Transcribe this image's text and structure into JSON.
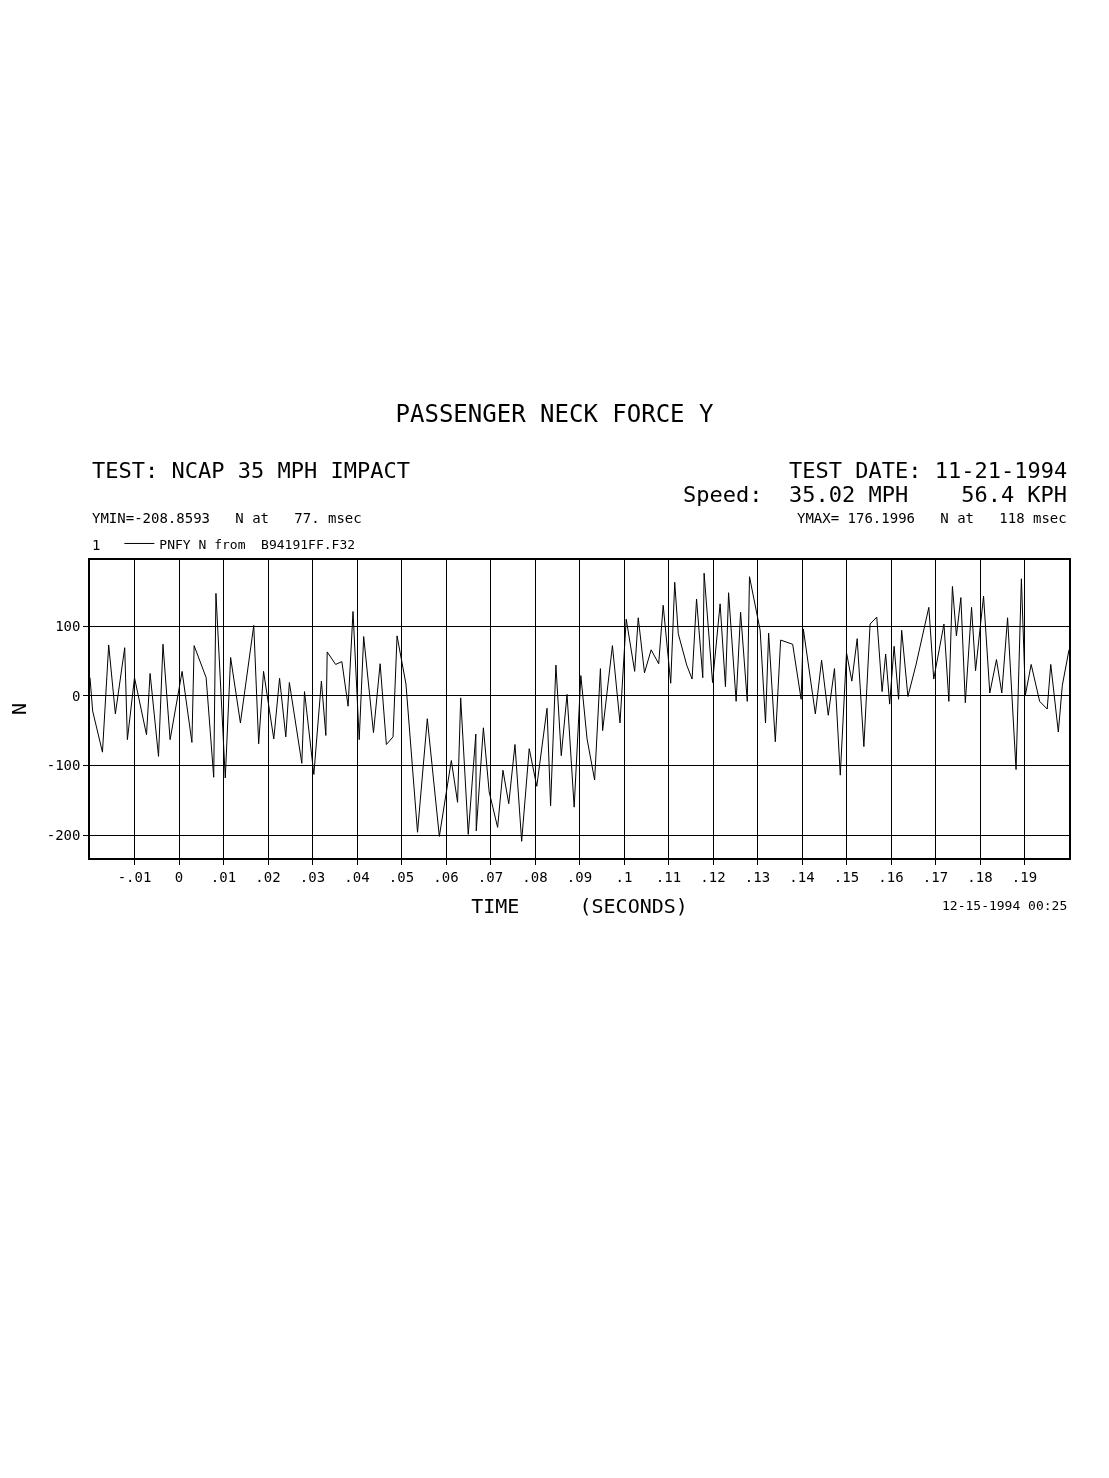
{
  "chart_data": {
    "type": "line",
    "title": "PASSENGER NECK FORCE Y",
    "xlabel": "TIME     (SECONDS)",
    "ylabel": "N",
    "annotations": [
      "TEST: NCAP 35 MPH IMPACT",
      "TEST DATE: 11-21-1994",
      "Speed:  35.02 MPH    56.4 KPH",
      "YMIN=-208.8593   N at   77. msec",
      "YMAX= 176.1996   N at   118 msec",
      "1",
      "12-15-1994 00:25"
    ],
    "x": [
      -0.02,
      -0.0194,
      -0.0172,
      -0.0158,
      -0.0143,
      -0.0122,
      -0.0116,
      -0.01,
      -0.0073,
      -0.0065,
      -0.0046,
      -0.0036,
      -0.002,
      0.0007,
      0.0029,
      0.0034,
      0.0061,
      0.0078,
      0.0083,
      0.0104,
      0.0116,
      0.0138,
      0.0168,
      0.0179,
      0.019,
      0.0213,
      0.0226,
      0.024,
      0.0248,
      0.0276,
      0.0282,
      0.0303,
      0.032,
      0.033,
      0.0333,
      0.0352,
      0.0366,
      0.038,
      0.0391,
      0.0405,
      0.0415,
      0.0437,
      0.0452,
      0.0466,
      0.0481,
      0.049,
      0.051,
      0.0536,
      0.0558,
      0.0585,
      0.0612,
      0.0626,
      0.0633,
      0.065,
      0.0667,
      0.0668,
      0.0684,
      0.0697,
      0.0716,
      0.0728,
      0.0741,
      0.0755,
      0.077,
      0.0787,
      0.0804,
      0.0827,
      0.0835,
      0.0847,
      0.0859,
      0.0872,
      0.0888,
      0.0903,
      0.0917,
      0.0934,
      0.0947,
      0.0952,
      0.0974,
      0.0991,
      0.1005,
      0.1024,
      0.1032,
      0.1046,
      0.1061,
      0.1078,
      0.1088,
      0.1105,
      0.1114,
      0.1122,
      0.1141,
      0.1153,
      0.1163,
      0.1177,
      0.118,
      0.1199,
      0.1216,
      0.1228,
      0.1235,
      0.1252,
      0.1262,
      0.1277,
      0.1282,
      0.1306,
      0.1318,
      0.1325,
      0.134,
      0.1352,
      0.1379,
      0.1398,
      0.1403,
      0.143,
      0.1444,
      0.1459,
      0.1473,
      0.1486,
      0.15,
      0.1512,
      0.1524,
      0.1539,
      0.1553,
      0.1568,
      0.158,
      0.1588,
      0.1597,
      0.1607,
      0.1617,
      0.1624,
      0.1638,
      0.1656,
      0.1685,
      0.1696,
      0.1719,
      0.173,
      0.1738,
      0.1747,
      0.1757,
      0.1767,
      0.1781,
      0.179,
      0.1808,
      0.1822,
      0.1837,
      0.1849,
      0.1862,
      0.1881,
      0.1893,
      0.1902,
      0.1915,
      0.1934,
      0.1951,
      0.1959,
      0.1976,
      0.1985,
      0.2
    ],
    "series": [
      {
        "name": "PNFY N from  B94191FF.F32",
        "color": "#000000",
        "values": [
          26,
          -22,
          -81,
          73,
          -26,
          69,
          -63,
          26,
          -56,
          32,
          -87,
          74,
          -63,
          35,
          -67,
          72,
          26,
          -117,
          147,
          -118,
          55,
          -39,
          101,
          -69,
          35,
          -62,
          25,
          -59,
          19,
          -97,
          6,
          -113,
          21,
          -57,
          63,
          45,
          49,
          -15,
          121,
          -63,
          85,
          -53,
          46,
          -70,
          -59,
          86,
          17,
          -196,
          -33,
          -202,
          -93,
          -153,
          -3,
          -199,
          -55,
          -194,
          -46,
          -138,
          -189,
          -107,
          -155,
          -70,
          -209,
          -76,
          -130,
          -18,
          -158,
          44,
          -86,
          2,
          -160,
          29,
          -62,
          -121,
          39,
          -50,
          72,
          -39,
          110,
          35,
          112,
          33,
          66,
          46,
          130,
          18,
          163,
          89,
          44,
          24,
          139,
          26,
          176,
          19,
          132,
          13,
          148,
          -8,
          120,
          -8,
          171,
          94,
          -39,
          90,
          -66,
          80,
          74,
          -5,
          96,
          -26,
          51,
          -28,
          39,
          -114,
          62,
          21,
          82,
          -73,
          103,
          113,
          6,
          60,
          -12,
          71,
          -5,
          94,
          -1,
          44,
          127,
          24,
          103,
          -8,
          157,
          86,
          141,
          -10,
          127,
          36,
          143,
          4,
          52,
          4,
          112,
          -106,
          168,
          1,
          45,
          -8,
          -19,
          45,
          -52,
          15,
          66
        ]
      }
    ],
    "xlim": [
      -0.02,
      0.2
    ],
    "xticks": [
      {
        "value": -0.01,
        "label": "-.01"
      },
      0,
      {
        "value": 0.01,
        "label": ".01"
      },
      {
        "value": 0.02,
        "label": ".02"
      },
      {
        "value": 0.03,
        "label": ".03"
      },
      {
        "value": 0.04,
        "label": ".04"
      },
      {
        "value": 0.05,
        "label": ".05"
      },
      {
        "value": 0.06,
        "label": ".06"
      },
      {
        "value": 0.07,
        "label": ".07"
      },
      {
        "value": 0.08,
        "label": ".08"
      },
      {
        "value": 0.09,
        "label": ".09"
      },
      {
        "value": 0.1,
        "label": ".1"
      },
      {
        "value": 0.11,
        "label": ".11"
      },
      {
        "value": 0.12,
        "label": ".12"
      },
      {
        "value": 0.13,
        "label": ".13"
      },
      {
        "value": 0.14,
        "label": ".14"
      },
      {
        "value": 0.15,
        "label": ".15"
      },
      {
        "value": 0.16,
        "label": ".16"
      },
      {
        "value": 0.17,
        "label": ".17"
      },
      {
        "value": 0.18,
        "label": ".18"
      },
      {
        "value": 0.19,
        "label": ".19"
      }
    ],
    "ylim": [
      -233,
      195
    ],
    "yticks": [
      100,
      0,
      -100,
      -200
    ],
    "grid": true,
    "legend": "top left",
    "marker": "none",
    "line_style": "solid"
  }
}
